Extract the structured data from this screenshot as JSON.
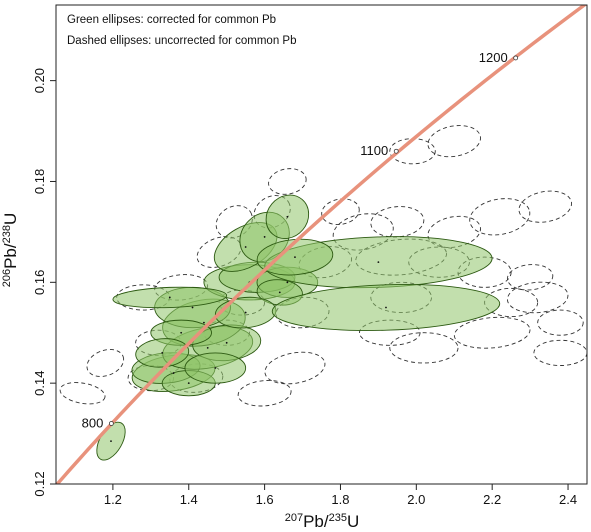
{
  "chart_data": {
    "type": "scatter",
    "subtype": "concordia",
    "xlabel_parts": {
      "sup": "207",
      "elem": "Pb/",
      "sup2": "235",
      "elem2": "U"
    },
    "ylabel_parts": {
      "sup": "206",
      "elem": "Pb/",
      "sup2": "238",
      "elem2": "U"
    },
    "xlim": [
      1.05,
      2.45
    ],
    "ylim": [
      0.12,
      0.215
    ],
    "xticks": [
      "1.2",
      "1.4",
      "1.6",
      "1.8",
      "2.0",
      "2.2",
      "2.4"
    ],
    "yticks": [
      "0.12",
      "0.14",
      "0.16",
      "0.18",
      "0.20"
    ],
    "legend_lines": [
      "Green ellipses: corrected for common Pb",
      "Dashed ellipses: uncorrected for common Pb"
    ],
    "concordia_color": "#e8927c",
    "ellipse_fill": "#8fc46a",
    "ellipse_stroke": "#2d5a12",
    "concordia_ages": [
      {
        "label": "800",
        "x": 1.196,
        "y": 0.132
      },
      {
        "label": "1100",
        "x": 1.947,
        "y": 0.186
      },
      {
        "label": "1200",
        "x": 2.262,
        "y": 0.2045
      }
    ],
    "corrected_ellipses": [
      {
        "x": 1.195,
        "y": 0.1285,
        "rx": 0.055,
        "ry": 0.0022,
        "angle": 60
      },
      {
        "x": 1.36,
        "y": 0.142,
        "rx": 0.11,
        "ry": 0.0035,
        "angle": 8
      },
      {
        "x": 1.34,
        "y": 0.143,
        "rx": 0.09,
        "ry": 0.003,
        "angle": 5
      },
      {
        "x": 1.4,
        "y": 0.14,
        "rx": 0.07,
        "ry": 0.0025,
        "angle": 0
      },
      {
        "x": 1.45,
        "y": 0.147,
        "rx": 0.12,
        "ry": 0.004,
        "angle": 10
      },
      {
        "x": 1.44,
        "y": 0.152,
        "rx": 0.11,
        "ry": 0.0045,
        "angle": 10
      },
      {
        "x": 1.5,
        "y": 0.148,
        "rx": 0.09,
        "ry": 0.0035,
        "angle": 5
      },
      {
        "x": 1.41,
        "y": 0.155,
        "rx": 0.1,
        "ry": 0.004,
        "angle": 0
      },
      {
        "x": 1.56,
        "y": 0.16,
        "rx": 0.12,
        "ry": 0.0035,
        "angle": 0
      },
      {
        "x": 1.58,
        "y": 0.161,
        "rx": 0.1,
        "ry": 0.003,
        "angle": 0
      },
      {
        "x": 1.66,
        "y": 0.16,
        "rx": 0.08,
        "ry": 0.003,
        "angle": 0
      },
      {
        "x": 1.55,
        "y": 0.167,
        "rx": 0.09,
        "ry": 0.004,
        "angle": 30
      },
      {
        "x": 1.6,
        "y": 0.169,
        "rx": 0.07,
        "ry": 0.0045,
        "angle": 45
      },
      {
        "x": 1.66,
        "y": 0.173,
        "rx": 0.06,
        "ry": 0.004,
        "angle": 50
      },
      {
        "x": 1.64,
        "y": 0.158,
        "rx": 0.06,
        "ry": 0.0025,
        "angle": -5
      },
      {
        "x": 1.55,
        "y": 0.154,
        "rx": 0.08,
        "ry": 0.003,
        "angle": 5
      },
      {
        "x": 1.35,
        "y": 0.157,
        "rx": 0.15,
        "ry": 0.002,
        "angle": 2
      },
      {
        "x": 1.9,
        "y": 0.164,
        "rx": 0.3,
        "ry": 0.005,
        "angle": 2
      },
      {
        "x": 1.92,
        "y": 0.155,
        "rx": 0.3,
        "ry": 0.0045,
        "angle": 2
      },
      {
        "x": 1.38,
        "y": 0.15,
        "rx": 0.08,
        "ry": 0.0025,
        "angle": 0
      },
      {
        "x": 1.33,
        "y": 0.146,
        "rx": 0.07,
        "ry": 0.0028,
        "angle": 5
      },
      {
        "x": 1.47,
        "y": 0.143,
        "rx": 0.08,
        "ry": 0.003,
        "angle": 0
      },
      {
        "x": 1.68,
        "y": 0.165,
        "rx": 0.1,
        "ry": 0.0035,
        "angle": 5
      }
    ],
    "uncorrected_ellipses": [
      {
        "x": 1.18,
        "y": 0.144,
        "rx": 0.05,
        "ry": 0.0025,
        "angle": 20
      },
      {
        "x": 1.12,
        "y": 0.138,
        "rx": 0.06,
        "ry": 0.002,
        "angle": -10
      },
      {
        "x": 1.3,
        "y": 0.141,
        "rx": 0.06,
        "ry": 0.0025,
        "angle": 0
      },
      {
        "x": 1.42,
        "y": 0.141,
        "rx": 0.07,
        "ry": 0.0028,
        "angle": 5
      },
      {
        "x": 1.6,
        "y": 0.138,
        "rx": 0.07,
        "ry": 0.0025,
        "angle": 5
      },
      {
        "x": 1.68,
        "y": 0.143,
        "rx": 0.08,
        "ry": 0.003,
        "angle": 10
      },
      {
        "x": 1.76,
        "y": 0.164,
        "rx": 0.07,
        "ry": 0.003,
        "angle": 10
      },
      {
        "x": 1.96,
        "y": 0.165,
        "rx": 0.12,
        "ry": 0.0035,
        "angle": 5
      },
      {
        "x": 2.06,
        "y": 0.164,
        "rx": 0.08,
        "ry": 0.003,
        "angle": 0
      },
      {
        "x": 2.18,
        "y": 0.162,
        "rx": 0.07,
        "ry": 0.003,
        "angle": 0
      },
      {
        "x": 2.3,
        "y": 0.161,
        "rx": 0.06,
        "ry": 0.0025,
        "angle": 5
      },
      {
        "x": 2.32,
        "y": 0.157,
        "rx": 0.08,
        "ry": 0.003,
        "angle": 5
      },
      {
        "x": 1.96,
        "y": 0.157,
        "rx": 0.08,
        "ry": 0.003,
        "angle": 0
      },
      {
        "x": 1.93,
        "y": 0.15,
        "rx": 0.08,
        "ry": 0.0025,
        "angle": 0
      },
      {
        "x": 2.02,
        "y": 0.147,
        "rx": 0.09,
        "ry": 0.003,
        "angle": 0
      },
      {
        "x": 2.2,
        "y": 0.15,
        "rx": 0.1,
        "ry": 0.003,
        "angle": 5
      },
      {
        "x": 2.38,
        "y": 0.152,
        "rx": 0.06,
        "ry": 0.0025,
        "angle": 0
      },
      {
        "x": 2.34,
        "y": 0.175,
        "rx": 0.07,
        "ry": 0.003,
        "angle": 10
      },
      {
        "x": 2.22,
        "y": 0.173,
        "rx": 0.08,
        "ry": 0.0035,
        "angle": 10
      },
      {
        "x": 2.1,
        "y": 0.17,
        "rx": 0.07,
        "ry": 0.003,
        "angle": 10
      },
      {
        "x": 1.95,
        "y": 0.172,
        "rx": 0.07,
        "ry": 0.003,
        "angle": 5
      },
      {
        "x": 1.86,
        "y": 0.17,
        "rx": 0.08,
        "ry": 0.0035,
        "angle": 10
      },
      {
        "x": 1.8,
        "y": 0.174,
        "rx": 0.05,
        "ry": 0.0025,
        "angle": 10
      },
      {
        "x": 2.1,
        "y": 0.188,
        "rx": 0.07,
        "ry": 0.003,
        "angle": 10
      },
      {
        "x": 1.99,
        "y": 0.186,
        "rx": 0.06,
        "ry": 0.0025,
        "angle": 0
      },
      {
        "x": 1.66,
        "y": 0.18,
        "rx": 0.05,
        "ry": 0.0025,
        "angle": 10
      },
      {
        "x": 1.62,
        "y": 0.174,
        "rx": 0.05,
        "ry": 0.003,
        "angle": 30
      },
      {
        "x": 1.52,
        "y": 0.172,
        "rx": 0.05,
        "ry": 0.003,
        "angle": 30
      },
      {
        "x": 1.48,
        "y": 0.166,
        "rx": 0.06,
        "ry": 0.0028,
        "angle": 20
      },
      {
        "x": 1.28,
        "y": 0.157,
        "rx": 0.07,
        "ry": 0.0025,
        "angle": 0
      },
      {
        "x": 1.38,
        "y": 0.159,
        "rx": 0.07,
        "ry": 0.0025,
        "angle": 5
      },
      {
        "x": 1.54,
        "y": 0.156,
        "rx": 0.06,
        "ry": 0.0025,
        "angle": 0
      },
      {
        "x": 1.7,
        "y": 0.154,
        "rx": 0.07,
        "ry": 0.003,
        "angle": 5
      },
      {
        "x": 1.5,
        "y": 0.15,
        "rx": 0.06,
        "ry": 0.0025,
        "angle": 0
      },
      {
        "x": 1.32,
        "y": 0.148,
        "rx": 0.06,
        "ry": 0.0025,
        "angle": 0
      },
      {
        "x": 2.38,
        "y": 0.146,
        "rx": 0.07,
        "ry": 0.0025,
        "angle": 0
      },
      {
        "x": 2.25,
        "y": 0.156,
        "rx": 0.07,
        "ry": 0.0028,
        "angle": 0
      }
    ]
  }
}
